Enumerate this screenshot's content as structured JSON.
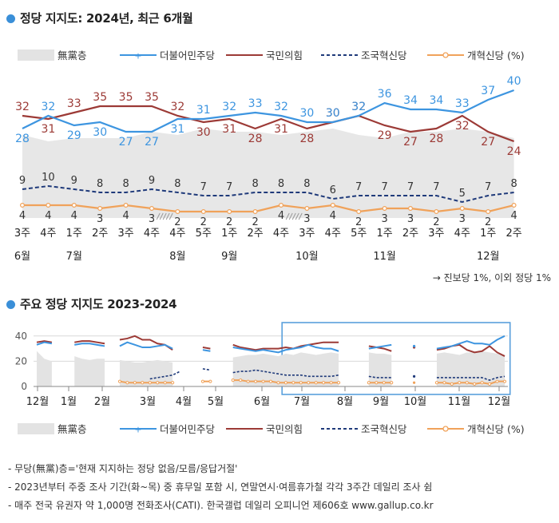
{
  "title_main": "정당 지지도: 2024년, 최근 6개월",
  "title_trend": "주요 정당 지지도 2023-2024",
  "legend": [
    {
      "label": "無黨층",
      "color": "#e3e3e3",
      "kind": "area"
    },
    {
      "label": "더불어민주당",
      "color": "#3d95e0",
      "kind": "line"
    },
    {
      "label": "국민의힘",
      "color": "#9c3a36",
      "kind": "line"
    },
    {
      "label": "조국혁신당",
      "color": "#1f3a7a",
      "kind": "dash"
    },
    {
      "label": "개혁신당 (%)",
      "color": "#f0a25a",
      "kind": "line"
    }
  ],
  "legend2_last": "개혁신당 (%)",
  "note_right": "→ 진보당 1%, 이외 정당 1%",
  "footnotes": [
    "- 무당(無黨)층='현재 지지하는 정당 없음/모름/응답거절'",
    "- 2023년부터 주중 조사 기간(화~목) 중 휴무일 포함 시, 연말연시·여름휴가철 각각 3주간 데일리 조사 쉼",
    "- 매주 전국 유권자 약 1,000명 전화조사(CATI). 한국갤럽 데일리 오피니언 제606호 www.gallup.co.kr"
  ],
  "chart_data": [
    {
      "type": "line",
      "title": "정당 지지도: 2024년, 최근 6개월",
      "x": [
        "3주",
        "4주",
        "1주",
        "2주",
        "3주",
        "4주",
        "4주",
        "5주",
        "1주",
        "2주",
        "4주",
        "3주",
        "4주",
        "5주",
        "1주",
        "2주",
        "3주",
        "4주",
        "1주",
        "2주"
      ],
      "month_labels": [
        {
          "at": 0,
          "label": "6월"
        },
        {
          "at": 2,
          "label": "7월"
        },
        {
          "at": 6,
          "label": "8월"
        },
        {
          "at": 8,
          "label": "9월"
        },
        {
          "at": 11,
          "label": "10월"
        },
        {
          "at": 14,
          "label": "11월"
        },
        {
          "at": 18,
          "label": "12월"
        }
      ],
      "breaks_after": [
        5,
        10
      ],
      "series": [
        {
          "name": "더불어민주당",
          "color": "#3d95e0",
          "values": [
            28,
            32,
            29,
            30,
            27,
            27,
            31,
            31,
            32,
            33,
            32,
            30,
            30,
            32,
            36,
            34,
            34,
            33,
            37,
            40
          ]
        },
        {
          "name": "국민의힘",
          "color": "#9c3a36",
          "values": [
            32,
            31,
            33,
            35,
            35,
            35,
            32,
            30,
            31,
            28,
            31,
            28,
            30,
            32,
            29,
            27,
            28,
            32,
            27,
            24
          ]
        },
        {
          "name": "조국혁신당",
          "color": "#1f3a7a",
          "dashed": true,
          "values": [
            9,
            10,
            9,
            8,
            8,
            9,
            8,
            7,
            7,
            8,
            8,
            8,
            6,
            7,
            7,
            7,
            7,
            5,
            7,
            8
          ]
        },
        {
          "name": "개혁신당",
          "color": "#f0a25a",
          "values": [
            4,
            4,
            4,
            3,
            4,
            3,
            2,
            2,
            2,
            2,
            4,
            3,
            4,
            2,
            3,
            3,
            2,
            3,
            2,
            4
          ]
        },
        {
          "name": "無黨층",
          "color": "#e3e3e3",
          "area": true,
          "values": [
            26,
            24,
            25,
            25,
            25,
            27,
            26,
            28,
            27,
            27,
            26,
            27,
            28,
            26,
            25,
            27,
            27,
            28,
            27,
            25
          ]
        }
      ],
      "ylim": [
        0,
        45
      ]
    },
    {
      "type": "line",
      "title": "주요 정당 지지도 2023-2024",
      "x_labels": [
        "12월",
        "1월",
        "2월",
        "3월",
        "4월",
        "5월",
        "6월",
        "7월",
        "8월",
        "9월",
        "10월",
        "11월",
        "12월"
      ],
      "yticks": [
        0,
        20,
        40
      ],
      "ylim": [
        0,
        45
      ],
      "highlight_window": "2024년 6월 ~ 12월",
      "segments": [
        {
          "start": 0,
          "dem": [
            33,
            35,
            34
          ],
          "ppp": [
            35,
            36,
            35
          ],
          "none": [
            28,
            22,
            20
          ]
        },
        {
          "start": 5,
          "dem": [
            33,
            34,
            34,
            33,
            32
          ],
          "ppp": [
            35,
            36,
            36,
            35,
            34
          ],
          "none": [
            24,
            22,
            21,
            22,
            22
          ]
        },
        {
          "start": 11,
          "dem": [
            32,
            35,
            33,
            31,
            31,
            32,
            33,
            30
          ],
          "ppp": [
            37,
            38,
            40,
            37,
            37,
            34,
            33,
            29
          ],
          "none": [
            21,
            20,
            19,
            19,
            20,
            21,
            20,
            19
          ],
          "cho": [
            6,
            7,
            8,
            9,
            12
          ],
          "cho_start": 15,
          "ref": [
            4,
            3,
            3,
            3,
            3,
            3,
            3,
            3
          ]
        },
        {
          "start": 22,
          "dem": [
            29,
            28
          ],
          "ppp": [
            31,
            30
          ],
          "cho": [
            14,
            13
          ],
          "ref": [
            4,
            4
          ]
        },
        {
          "start": 26,
          "dem": [
            31,
            30,
            29,
            28,
            29,
            28,
            27,
            29,
            30,
            31,
            33,
            31,
            30,
            30,
            28
          ],
          "ppp": [
            33,
            31,
            30,
            29,
            30,
            30,
            30,
            31,
            30,
            32,
            33,
            34,
            35,
            35,
            35
          ],
          "none": [
            23,
            24,
            25,
            25,
            26,
            25,
            24,
            26,
            25,
            27,
            26,
            25,
            26,
            27,
            26
          ],
          "cho": [
            11,
            12,
            12,
            13,
            12,
            11,
            10,
            9,
            9,
            9,
            8,
            8,
            8,
            8,
            9
          ],
          "ref": [
            5,
            5,
            4,
            4,
            4,
            4,
            3,
            3,
            3,
            3,
            3,
            3,
            3,
            3,
            3
          ]
        },
        {
          "start": 44,
          "dem": [
            30,
            31,
            32,
            33
          ],
          "ppp": [
            32,
            31,
            30,
            28
          ],
          "none": [
            27,
            26,
            26,
            25
          ],
          "cho": [
            8,
            7,
            7,
            7
          ],
          "ref": [
            3,
            3,
            3,
            3
          ]
        },
        {
          "start": 50,
          "dem": [
            32
          ],
          "ppp": [
            31
          ],
          "cho": [
            8
          ],
          "ref": [
            3
          ]
        },
        {
          "start": 53,
          "dem": [
            30,
            31,
            32,
            34,
            36,
            34,
            34,
            33,
            37,
            40
          ],
          "ppp": [
            29,
            30,
            32,
            33,
            29,
            27,
            28,
            32,
            27,
            24
          ],
          "none": [
            26,
            27,
            26,
            25,
            27,
            27,
            28,
            27,
            26,
            25
          ],
          "cho": [
            7,
            7,
            7,
            7,
            7,
            7,
            7,
            5,
            7,
            8
          ],
          "ref": [
            3,
            3,
            2,
            3,
            3,
            2,
            3,
            2,
            4,
            4
          ]
        }
      ]
    }
  ]
}
